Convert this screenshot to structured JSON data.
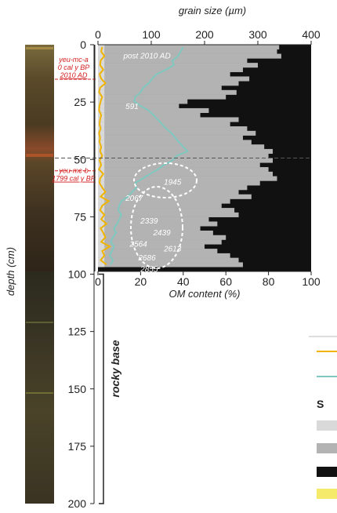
{
  "chart_data": {
    "type": "area",
    "x_top": {
      "label": "grain size (µm)",
      "ticks": [
        0,
        100,
        200,
        300,
        400
      ],
      "range": [
        0,
        400
      ]
    },
    "x_bottom": {
      "label": "OM content (%)",
      "ticks": [
        0,
        20,
        40,
        60,
        80,
        100
      ],
      "range": [
        0,
        100
      ]
    },
    "y": {
      "label": "depth (cm)",
      "ticks": [
        0,
        25,
        50,
        75,
        100,
        125,
        150,
        175,
        200
      ],
      "range": [
        0,
        200
      ]
    },
    "depth": [
      0,
      2,
      4,
      6,
      8,
      10,
      12,
      14,
      16,
      18,
      20,
      22,
      24,
      26,
      28,
      30,
      32,
      34,
      36,
      38,
      40,
      42,
      44,
      46,
      48,
      50,
      52,
      54,
      56,
      58,
      60,
      62,
      64,
      66,
      68,
      70,
      72,
      74,
      76,
      78,
      80,
      82,
      84,
      86,
      88,
      90,
      92,
      94,
      96
    ],
    "series": [
      {
        "fill_color": "#d9d9d9",
        "values": [
          3,
          3,
          3,
          3,
          3,
          3,
          3,
          3,
          3,
          3,
          3,
          3,
          3,
          3,
          3,
          3,
          3,
          3,
          3,
          3,
          3,
          3,
          3,
          3,
          3,
          3,
          3,
          3,
          3,
          3,
          3,
          3,
          3,
          3,
          3,
          3,
          3,
          3,
          3,
          3,
          3,
          3,
          3,
          3,
          3,
          3,
          3,
          3,
          3
        ]
      },
      {
        "fill_color": "#b3b3b3",
        "values": [
          85,
          84,
          86,
          70,
          75,
          68,
          62,
          71,
          66,
          58,
          65,
          60,
          42,
          38,
          52,
          48,
          66,
          62,
          70,
          74,
          68,
          72,
          78,
          82,
          80,
          82,
          76,
          80,
          82,
          84,
          76,
          70,
          66,
          72,
          62,
          58,
          64,
          66,
          52,
          56,
          48,
          54,
          60,
          58,
          50,
          56,
          62,
          66,
          68
        ]
      },
      {
        "fill_color": "#111111",
        "values": [
          100,
          100,
          100,
          100,
          100,
          100,
          100,
          100,
          100,
          100,
          100,
          100,
          100,
          100,
          100,
          100,
          100,
          100,
          100,
          100,
          100,
          100,
          100,
          100,
          100,
          100,
          100,
          100,
          100,
          100,
          100,
          100,
          100,
          100,
          100,
          100,
          100,
          100,
          100,
          100,
          100,
          100,
          100,
          100,
          100,
          100,
          100,
          100,
          100
        ]
      }
    ],
    "lines": [
      {
        "axis": "top",
        "color": "#f0b400",
        "values": [
          8,
          6,
          12,
          5,
          4,
          10,
          3,
          6,
          14,
          4,
          2,
          8,
          5,
          3,
          2,
          6,
          4,
          3,
          5,
          2,
          4,
          3,
          6,
          4,
          8,
          3,
          6,
          2,
          10,
          4,
          3,
          8,
          14,
          5,
          20,
          8,
          4,
          12,
          6,
          16,
          5,
          10,
          14,
          6,
          22,
          8,
          12,
          5,
          16
        ]
      },
      {
        "axis": "top",
        "color": "#7fc8c0",
        "values": [
          160,
          155,
          150,
          140,
          142,
          128,
          110,
          102,
          95,
          85,
          80,
          70,
          68,
          80,
          95,
          104,
          112,
          120,
          128,
          138,
          145,
          152,
          160,
          168,
          148,
          140,
          124,
          112,
          98,
          84,
          70,
          72,
          64,
          56,
          44,
          40,
          38,
          44,
          40,
          36,
          30,
          34,
          28,
          24,
          30,
          26,
          22,
          28,
          24
        ]
      }
    ],
    "annotations": [
      {
        "text": "post 2010 AD",
        "depth": 5,
        "x_om": 23
      },
      {
        "text": "591",
        "depth": 27,
        "x_om": 16
      },
      {
        "text": "1945",
        "depth": 60,
        "x_om": 35
      },
      {
        "text": "2067",
        "depth": 67,
        "x_om": 17
      },
      {
        "text": "2339",
        "depth": 77,
        "x_om": 24
      },
      {
        "text": "2439",
        "depth": 82,
        "x_om": 30
      },
      {
        "text": "2564",
        "depth": 87,
        "x_om": 19
      },
      {
        "text": "2613",
        "depth": 89,
        "x_om": 35
      },
      {
        "text": "2686",
        "depth": 93,
        "x_om": 23
      },
      {
        "text": "2855",
        "depth": 98,
        "x_om": 24
      }
    ],
    "dashed_line_depth": 50,
    "core_notes": [
      {
        "lines": [
          "yeu-mc-a",
          "0 cal y BP",
          "2010 AD"
        ],
        "depth": 7
      },
      {
        "lines": [
          "yeu-mc-b",
          "1799 cal y BP"
        ],
        "depth": 58
      }
    ],
    "side_label": "rocky base",
    "legend_header": "S",
    "legend_swatches": [
      "#f0b400",
      "#7fc8c0",
      "#d9d9d9",
      "#b3b3b3",
      "#111111",
      "#f5ea6a"
    ]
  }
}
